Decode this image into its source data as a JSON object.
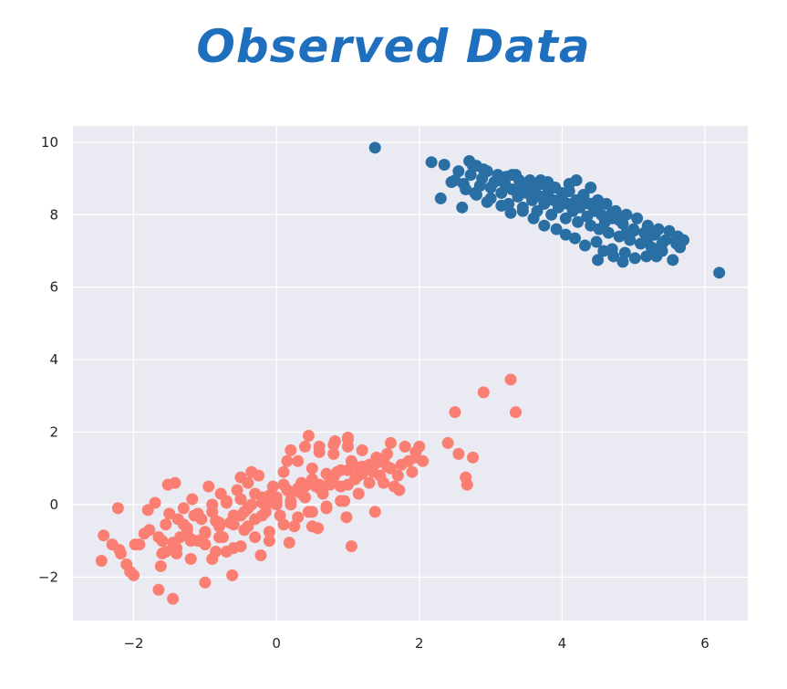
{
  "chart_data": {
    "type": "scatter",
    "title": "Observed Data",
    "xlabel": "",
    "ylabel": "",
    "xlim": [
      -2.85,
      6.6
    ],
    "ylim": [
      -3.2,
      10.45
    ],
    "xticks": [
      -2,
      0,
      2,
      4,
      6
    ],
    "yticks": [
      -2,
      0,
      2,
      4,
      6,
      8,
      10
    ],
    "grid": true,
    "legend": "none",
    "colors": {
      "background": "#eaeaf2",
      "grid": "#ffffff",
      "title": "#1f6fbf",
      "cluster_blue": "#2a6fa3",
      "cluster_salmon": "#fa7f72"
    },
    "series": [
      {
        "color": "#2a6fa3",
        "x": [
          1.38,
          2.17,
          2.35,
          2.45,
          2.55,
          2.62,
          2.7,
          2.72,
          2.78,
          2.8,
          2.85,
          2.88,
          2.95,
          3.0,
          3.05,
          3.1,
          3.15,
          3.2,
          3.22,
          3.25,
          3.3,
          3.35,
          3.38,
          3.42,
          3.45,
          3.5,
          3.55,
          3.58,
          3.62,
          3.65,
          3.7,
          3.72,
          3.75,
          3.8,
          3.85,
          3.88,
          3.9,
          3.95,
          4.0,
          4.05,
          4.08,
          4.1,
          4.15,
          4.2,
          4.22,
          4.25,
          4.3,
          4.35,
          4.38,
          4.4,
          4.45,
          4.5,
          4.52,
          4.55,
          4.6,
          4.62,
          4.65,
          4.7,
          4.75,
          4.8,
          4.85,
          4.9,
          4.95,
          5.0,
          5.05,
          5.1,
          5.15,
          5.2,
          5.25,
          5.3,
          5.35,
          5.4,
          5.45,
          5.5,
          5.55,
          5.6,
          5.62,
          5.65,
          5.7,
          6.2,
          2.3,
          2.6,
          2.75,
          2.9,
          3.0,
          3.1,
          3.3,
          3.4,
          3.5,
          3.6,
          3.7,
          3.8,
          3.9,
          4.0,
          4.1,
          4.2,
          4.3,
          4.4,
          4.5,
          4.6,
          4.7,
          4.8,
          4.9,
          5.0,
          5.2,
          5.4,
          2.5,
          2.65,
          2.8,
          2.95,
          3.15,
          3.28,
          3.45,
          3.6,
          3.75,
          3.92,
          4.05,
          4.18,
          4.32,
          4.48,
          4.58,
          4.72,
          4.88,
          5.02,
          5.18,
          5.32,
          4.5,
          4.7,
          4.85,
          4.4,
          5.6
        ],
        "y": [
          9.85,
          9.45,
          9.38,
          8.9,
          9.2,
          8.85,
          9.48,
          9.1,
          8.6,
          9.35,
          8.8,
          9.0,
          9.2,
          8.45,
          8.9,
          9.1,
          8.6,
          8.85,
          9.05,
          8.3,
          8.7,
          9.1,
          8.5,
          8.8,
          8.2,
          8.6,
          8.95,
          8.4,
          8.7,
          8.1,
          8.5,
          8.85,
          8.3,
          8.6,
          8.0,
          8.4,
          8.75,
          8.2,
          8.5,
          7.9,
          8.3,
          8.65,
          8.1,
          8.4,
          7.8,
          8.2,
          8.55,
          7.95,
          8.3,
          7.7,
          8.1,
          8.4,
          7.6,
          8.0,
          7.85,
          8.3,
          7.5,
          7.9,
          8.1,
          7.4,
          7.75,
          8.0,
          7.3,
          7.6,
          7.9,
          7.2,
          7.5,
          7.7,
          7.1,
          7.45,
          7.6,
          7.0,
          7.3,
          7.55,
          6.75,
          7.2,
          7.4,
          7.1,
          7.3,
          6.4,
          8.45,
          8.2,
          9.35,
          9.25,
          8.75,
          8.95,
          9.1,
          8.95,
          8.85,
          8.75,
          8.95,
          8.9,
          8.75,
          8.6,
          8.85,
          8.95,
          8.5,
          8.3,
          8.25,
          7.8,
          8.05,
          7.85,
          7.5,
          7.55,
          7.35,
          7.2,
          8.95,
          8.7,
          8.55,
          8.35,
          8.25,
          8.05,
          8.1,
          7.9,
          7.7,
          7.6,
          7.45,
          7.35,
          7.15,
          7.25,
          7.0,
          6.85,
          6.95,
          6.8,
          6.85,
          6.85,
          6.75,
          7.05,
          6.7,
          8.75,
          7.3
        ]
      },
      {
        "color": "#fa7f72",
        "x": [
          -2.45,
          -2.42,
          -2.3,
          -2.22,
          -2.18,
          -2.1,
          -2.05,
          -2.0,
          -1.98,
          -1.92,
          -1.85,
          -1.78,
          -1.7,
          -1.65,
          -1.62,
          -1.6,
          -1.55,
          -1.52,
          -1.5,
          -1.45,
          -1.42,
          -1.4,
          -1.35,
          -1.3,
          -1.25,
          -1.2,
          -1.18,
          -1.15,
          -1.1,
          -1.05,
          -1.0,
          -0.95,
          -0.9,
          -0.85,
          -0.8,
          -0.78,
          -0.75,
          -0.7,
          -0.65,
          -0.6,
          -0.55,
          -0.5,
          -0.45,
          -0.4,
          -0.35,
          -0.3,
          -0.25,
          -0.2,
          -0.15,
          -0.1,
          -0.05,
          0.0,
          0.05,
          0.1,
          0.15,
          0.2,
          0.25,
          0.3,
          0.35,
          0.4,
          0.45,
          0.5,
          0.55,
          0.6,
          0.65,
          0.7,
          0.75,
          0.8,
          0.85,
          0.9,
          0.95,
          1.0,
          1.05,
          1.1,
          1.15,
          1.2,
          1.25,
          1.3,
          1.35,
          1.4,
          1.45,
          1.5,
          1.55,
          1.6,
          1.65,
          1.7,
          1.75,
          1.8,
          1.85,
          1.9,
          1.95,
          2.0,
          2.05,
          2.4,
          2.5,
          2.55,
          2.65,
          2.67,
          2.75,
          2.9,
          3.28,
          3.35,
          -1.55,
          -1.45,
          -1.2,
          -1.0,
          -0.8,
          -0.6,
          -0.4,
          -0.2,
          0.0,
          0.2,
          0.4,
          0.6,
          0.8,
          1.0,
          1.2,
          -1.3,
          -1.1,
          -0.9,
          -0.7,
          -0.5,
          -0.3,
          -0.1,
          0.1,
          0.3,
          0.5,
          0.7,
          0.9,
          1.1,
          1.3,
          1.5,
          -1.6,
          -1.4,
          -1.2,
          -1.0,
          -0.8,
          -0.6,
          -0.4,
          -0.2,
          0.0,
          0.2,
          0.4,
          0.6,
          0.8,
          1.0,
          1.2,
          1.4,
          -0.9,
          -0.7,
          -0.5,
          -0.3,
          -0.1,
          0.1,
          0.3,
          0.5,
          0.7,
          0.9,
          0.2,
          0.4,
          0.6,
          0.8,
          1.0,
          1.6,
          -1.65,
          -1.25,
          -0.85,
          -0.45,
          -0.05,
          0.35,
          0.75,
          1.15,
          1.55,
          1.95,
          -1.8,
          -2.2,
          -1.38,
          -0.35,
          0.15,
          0.45,
          0.82,
          1.05,
          1.38,
          1.72,
          -1.0,
          -0.62,
          -0.22,
          0.18,
          0.58,
          0.98,
          -0.5,
          0.0,
          0.5,
          1.0
        ],
        "y": [
          -1.55,
          -0.85,
          -1.1,
          -0.1,
          -1.35,
          -1.65,
          -1.85,
          -1.95,
          -1.1,
          -1.1,
          -0.8,
          -0.7,
          0.05,
          -2.35,
          -1.7,
          -1.0,
          -0.55,
          0.55,
          -0.25,
          -2.6,
          0.6,
          -1.35,
          -0.9,
          -0.1,
          -0.7,
          -1.5,
          0.15,
          -0.3,
          -1.0,
          -0.4,
          -0.8,
          0.5,
          -0.2,
          -1.3,
          -0.6,
          0.3,
          -0.9,
          0.1,
          -0.5,
          -1.2,
          0.4,
          -0.3,
          -0.7,
          0.6,
          0.0,
          -0.4,
          0.8,
          0.2,
          -0.2,
          -1.0,
          0.5,
          0.1,
          -0.3,
          0.9,
          0.4,
          0.0,
          -0.6,
          1.2,
          0.6,
          0.2,
          -0.2,
          1.0,
          0.5,
          1.6,
          0.3,
          -0.1,
          0.7,
          1.4,
          0.9,
          0.5,
          0.1,
          1.8,
          1.2,
          0.7,
          0.3,
          1.5,
          1.0,
          0.6,
          0.9,
          1.3,
          0.8,
          0.6,
          1.4,
          1.0,
          0.5,
          0.8,
          1.1,
          1.6,
          1.2,
          0.9,
          1.45,
          1.6,
          1.2,
          1.7,
          2.55,
          1.4,
          0.75,
          0.55,
          1.3,
          3.1,
          3.45,
          2.55,
          -1.3,
          -1.05,
          -0.95,
          -1.1,
          -0.9,
          -0.55,
          -0.6,
          -0.3,
          0.0,
          0.1,
          0.2,
          0.45,
          0.75,
          0.55,
          0.85,
          -0.55,
          -0.25,
          0.0,
          0.05,
          0.15,
          0.3,
          0.25,
          0.55,
          0.45,
          0.7,
          0.85,
          0.95,
          1.05,
          1.1,
          1.25,
          -1.35,
          -1.2,
          -1.0,
          -0.75,
          -0.5,
          -0.3,
          -0.1,
          0.05,
          0.2,
          0.3,
          0.5,
          0.55,
          0.75,
          0.95,
          1.05,
          1.15,
          -1.5,
          -1.3,
          -1.15,
          -0.9,
          -0.75,
          -0.55,
          -0.35,
          -0.2,
          -0.05,
          0.1,
          1.5,
          1.6,
          1.45,
          1.65,
          1.85,
          1.7,
          -0.9,
          -0.65,
          -0.45,
          -0.2,
          0.05,
          0.3,
          0.55,
          0.8,
          1.05,
          1.3,
          -0.15,
          -1.25,
          -0.4,
          0.9,
          1.2,
          1.9,
          1.75,
          -1.15,
          -0.2,
          0.4,
          -2.15,
          -1.95,
          -1.4,
          -1.05,
          -0.65,
          -0.35,
          0.75,
          0.2,
          -0.6,
          1.6
        ]
      }
    ]
  }
}
